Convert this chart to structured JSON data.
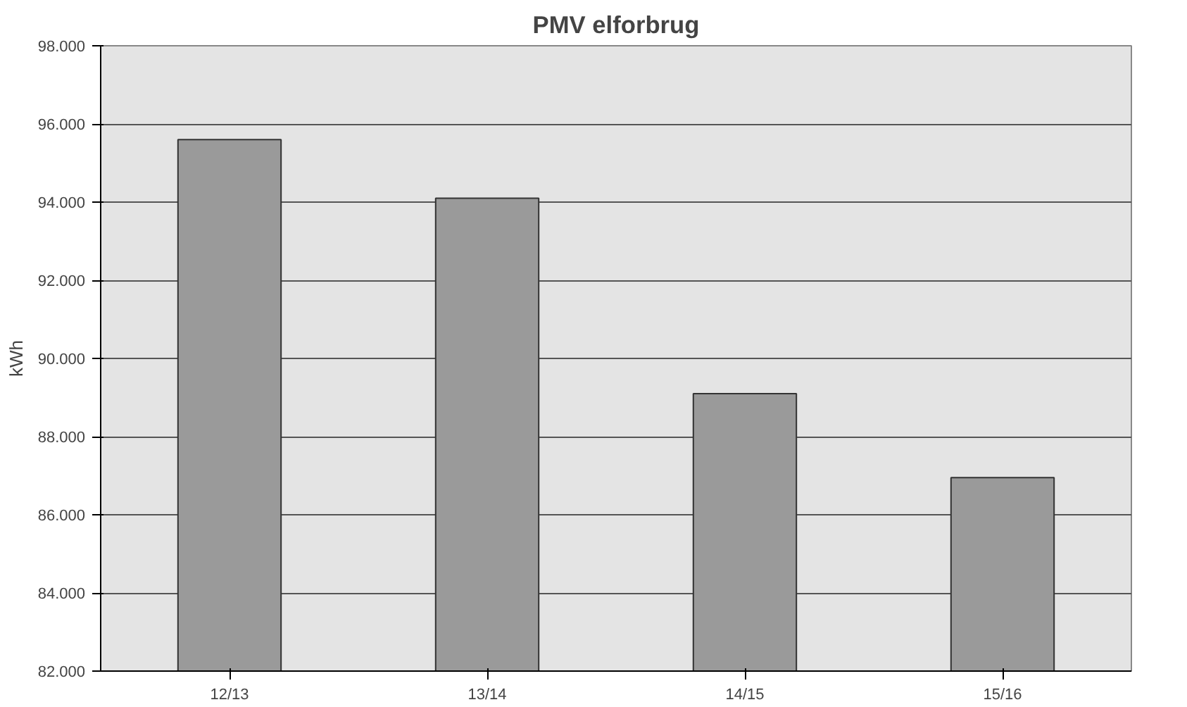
{
  "chart_data": {
    "type": "bar",
    "title": "PMV elforbrug",
    "ylabel": "kWh",
    "categories": [
      "12/13",
      "13/14",
      "14/15",
      "15/16"
    ],
    "values": [
      95600,
      94100,
      89100,
      86950
    ],
    "color": "#9a9a9a",
    "ylim": [
      82000,
      98000
    ],
    "yticks": [
      {
        "value": 82000,
        "label": "82.000"
      },
      {
        "value": 84000,
        "label": "84.000"
      },
      {
        "value": 86000,
        "label": "86.000"
      },
      {
        "value": 88000,
        "label": "88.000"
      },
      {
        "value": 90000,
        "label": "90.000"
      },
      {
        "value": 92000,
        "label": "92.000"
      },
      {
        "value": 94000,
        "label": "94.000"
      },
      {
        "value": 96000,
        "label": "96.000"
      },
      {
        "value": 98000,
        "label": "98.000"
      }
    ],
    "grid": "y"
  }
}
